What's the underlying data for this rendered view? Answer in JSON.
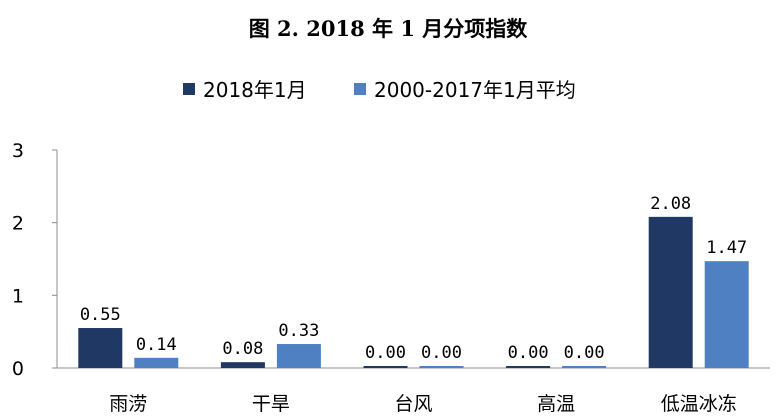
{
  "chart_data": {
    "type": "bar",
    "title": "图 2. 2018 年 1 月分项指数",
    "xlabel": "",
    "ylabel": "",
    "categories": [
      "雨涝",
      "干旱",
      "台风",
      "高温",
      "低温冰冻"
    ],
    "series": [
      {
        "name": "2018年1月",
        "color": "#1f3864",
        "values": [
          0.55,
          0.08,
          0.0,
          0.0,
          2.08
        ],
        "labels": [
          "0.55",
          "0.08",
          "0.00",
          "0.00",
          "2.08"
        ]
      },
      {
        "name": "2000-2017年1月平均",
        "color": "#4f81c2",
        "values": [
          0.14,
          0.33,
          0.0,
          0.0,
          1.47
        ],
        "labels": [
          "0.14",
          "0.33",
          "0.00",
          "0.00",
          "1.47"
        ]
      }
    ],
    "ylim": [
      0,
      3
    ],
    "yticks": [
      "0",
      "1",
      "2",
      "3"
    ],
    "grid": false,
    "legend": "top"
  }
}
